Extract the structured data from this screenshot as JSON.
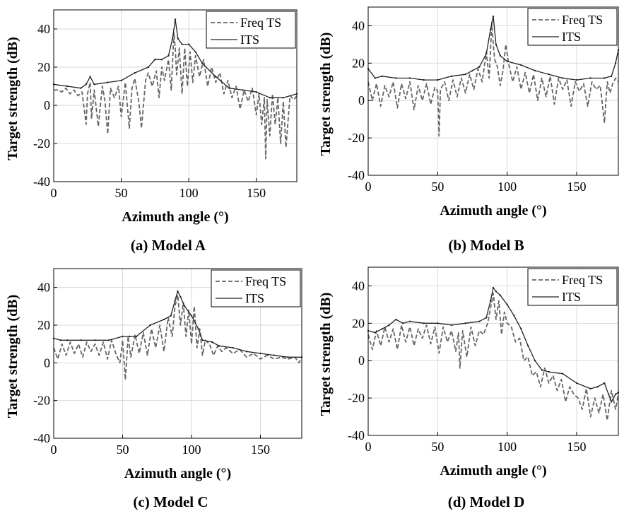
{
  "chart_data": [
    {
      "type": "line",
      "caption": "(a) Model A",
      "xlabel": "Azimuth angle (°)",
      "ylabel": "Target strength (dB)",
      "xlim": [
        0,
        180
      ],
      "ylim": [
        -40,
        50
      ],
      "xticks": [
        0,
        50,
        100,
        150
      ],
      "yticks": [
        -40,
        -20,
        0,
        20,
        40
      ],
      "grid": true,
      "legend": "top-right",
      "series": [
        {
          "name": "Freq TS",
          "style": "dashed",
          "color": "#666666",
          "x": [
            0,
            3,
            6,
            9,
            12,
            15,
            18,
            21,
            24,
            25,
            27,
            28,
            30,
            33,
            36,
            38,
            40,
            42,
            45,
            48,
            50,
            53,
            56,
            58,
            60,
            63,
            65,
            68,
            70,
            73,
            76,
            78,
            80,
            82,
            85,
            87,
            89,
            90,
            91,
            93,
            95,
            97,
            99,
            101,
            103,
            105,
            108,
            111,
            114,
            117,
            120,
            123,
            126,
            129,
            132,
            135,
            138,
            141,
            144,
            147,
            150,
            152,
            154,
            156,
            157,
            158,
            160,
            162,
            164,
            166,
            168,
            170,
            172,
            175,
            178,
            180
          ],
          "values": [
            8,
            8,
            7,
            9,
            6,
            8,
            5,
            7,
            -10,
            6,
            12,
            -7,
            8,
            -11,
            10,
            2,
            -15,
            9,
            4,
            10,
            -6,
            12,
            -12,
            9,
            14,
            2,
            -12,
            13,
            17,
            10,
            18,
            4,
            20,
            13,
            24,
            8,
            38,
            30,
            16,
            30,
            6,
            30,
            10,
            28,
            12,
            26,
            15,
            24,
            10,
            20,
            12,
            17,
            6,
            13,
            4,
            10,
            -2,
            8,
            2,
            9,
            -5,
            6,
            -10,
            4,
            -28,
            3,
            -16,
            6,
            -10,
            4,
            -20,
            2,
            -22,
            5,
            3,
            5
          ]
        },
        {
          "name": "ITS",
          "style": "solid",
          "color": "#222222",
          "x": [
            0,
            10,
            20,
            24,
            27,
            30,
            40,
            50,
            60,
            70,
            75,
            80,
            85,
            88,
            90,
            92,
            95,
            100,
            105,
            110,
            120,
            130,
            140,
            150,
            160,
            170,
            180
          ],
          "values": [
            11,
            10,
            9,
            11,
            15,
            11,
            12,
            13,
            17,
            20,
            24,
            24,
            26,
            35,
            45,
            35,
            32,
            32,
            28,
            22,
            15,
            9,
            8,
            7,
            4,
            4,
            6
          ]
        }
      ]
    },
    {
      "type": "line",
      "caption": "(b) Model B",
      "xlabel": "Azimuth angle (°)",
      "ylabel": "Target strength (dB)",
      "xlim": [
        0,
        180
      ],
      "ylim": [
        -40,
        50
      ],
      "xticks": [
        0,
        50,
        100,
        150
      ],
      "yticks": [
        -40,
        -20,
        0,
        20,
        40
      ],
      "grid": true,
      "legend": "top-right",
      "series": [
        {
          "name": "Freq TS",
          "style": "dashed",
          "color": "#666666",
          "x": [
            0,
            3,
            6,
            9,
            12,
            15,
            18,
            21,
            24,
            27,
            30,
            33,
            36,
            39,
            42,
            45,
            48,
            50,
            51,
            52,
            55,
            58,
            61,
            64,
            67,
            70,
            73,
            76,
            79,
            82,
            85,
            87,
            89,
            90,
            91,
            93,
            95,
            97,
            99,
            101,
            104,
            107,
            110,
            113,
            116,
            119,
            122,
            125,
            128,
            131,
            134,
            137,
            140,
            143,
            146,
            149,
            152,
            155,
            158,
            161,
            164,
            167,
            170,
            172,
            174,
            176,
            178,
            180
          ],
          "values": [
            10,
            0,
            9,
            -3,
            8,
            2,
            10,
            -4,
            9,
            1,
            10,
            -5,
            8,
            0,
            9,
            -2,
            7,
            5,
            -19,
            6,
            10,
            0,
            11,
            2,
            12,
            4,
            14,
            6,
            17,
            10,
            26,
            12,
            42,
            30,
            22,
            18,
            8,
            16,
            30,
            20,
            10,
            18,
            6,
            15,
            4,
            14,
            0,
            12,
            2,
            13,
            -2,
            12,
            6,
            11,
            -3,
            10,
            5,
            9,
            -3,
            10,
            6,
            8,
            -12,
            10,
            4,
            9,
            12,
            10
          ]
        },
        {
          "name": "ITS",
          "style": "solid",
          "color": "#222222",
          "x": [
            0,
            5,
            10,
            20,
            30,
            40,
            50,
            60,
            70,
            75,
            80,
            85,
            88,
            90,
            92,
            95,
            100,
            110,
            120,
            130,
            140,
            150,
            160,
            170,
            175,
            178,
            180
          ],
          "values": [
            17,
            12,
            13,
            12,
            12,
            11,
            11,
            13,
            14,
            16,
            18,
            25,
            38,
            45,
            30,
            24,
            21,
            19,
            16,
            14,
            12,
            11,
            12,
            12,
            13,
            20,
            27
          ]
        }
      ]
    },
    {
      "type": "line",
      "caption": "(c) Model C",
      "xlabel": "Azimuth angle (°)",
      "ylabel": "Target strength (dB)",
      "xlim": [
        0,
        180
      ],
      "ylim": [
        -40,
        50
      ],
      "xticks": [
        0,
        50,
        100,
        150
      ],
      "yticks": [
        -40,
        -20,
        0,
        20,
        40
      ],
      "grid": true,
      "legend": "top-right",
      "series": [
        {
          "name": "Freq TS",
          "style": "dashed",
          "color": "#666666",
          "x": [
            0,
            3,
            6,
            9,
            12,
            15,
            18,
            21,
            24,
            27,
            30,
            33,
            36,
            39,
            42,
            45,
            48,
            50,
            52,
            54,
            56,
            59,
            62,
            65,
            68,
            71,
            74,
            77,
            80,
            83,
            86,
            88,
            90,
            92,
            94,
            96,
            98,
            100,
            102,
            104,
            106,
            108,
            110,
            113,
            116,
            119,
            122,
            125,
            130,
            135,
            140,
            145,
            150,
            155,
            160,
            165,
            170,
            175,
            178,
            180
          ],
          "values": [
            8,
            2,
            10,
            4,
            11,
            5,
            10,
            3,
            11,
            6,
            10,
            4,
            11,
            2,
            12,
            5,
            0,
            12,
            -9,
            14,
            3,
            15,
            5,
            16,
            4,
            18,
            8,
            20,
            6,
            24,
            14,
            30,
            36,
            20,
            32,
            14,
            28,
            10,
            30,
            8,
            18,
            4,
            12,
            10,
            4,
            9,
            6,
            8,
            5,
            7,
            3,
            5,
            2,
            4,
            2,
            3,
            2,
            3,
            0,
            3
          ]
        },
        {
          "name": "ITS",
          "style": "solid",
          "color": "#222222",
          "x": [
            0,
            5,
            10,
            20,
            30,
            40,
            50,
            55,
            60,
            70,
            80,
            85,
            88,
            90,
            92,
            95,
            100,
            105,
            108,
            115,
            120,
            130,
            140,
            150,
            160,
            170,
            180
          ],
          "values": [
            13,
            12,
            12,
            12,
            12,
            12,
            14,
            14,
            14,
            20,
            23,
            25,
            33,
            38,
            35,
            30,
            25,
            18,
            12,
            11,
            9,
            8,
            6,
            5,
            4,
            3,
            3
          ]
        }
      ]
    },
    {
      "type": "line",
      "caption": "(d) Model D",
      "xlabel": "Azimuth angle (°)",
      "ylabel": "Target strength (dB)",
      "xlim": [
        0,
        180
      ],
      "ylim": [
        -40,
        50
      ],
      "xticks": [
        0,
        50,
        100,
        150
      ],
      "yticks": [
        -40,
        -20,
        0,
        20,
        40
      ],
      "grid": true,
      "legend": "top-right",
      "series": [
        {
          "name": "Freq TS",
          "style": "dashed",
          "color": "#666666",
          "x": [
            0,
            3,
            6,
            9,
            12,
            15,
            18,
            21,
            24,
            27,
            30,
            33,
            36,
            39,
            42,
            45,
            48,
            51,
            54,
            57,
            60,
            63,
            65,
            66,
            68,
            71,
            74,
            77,
            80,
            83,
            86,
            88,
            90,
            92,
            94,
            96,
            98,
            100,
            103,
            106,
            109,
            112,
            115,
            118,
            121,
            124,
            127,
            130,
            133,
            136,
            139,
            142,
            145,
            148,
            151,
            154,
            157,
            160,
            163,
            166,
            169,
            172,
            175,
            178,
            180
          ],
          "values": [
            14,
            6,
            16,
            8,
            18,
            10,
            17,
            6,
            19,
            10,
            18,
            8,
            17,
            12,
            19,
            9,
            18,
            4,
            18,
            10,
            16,
            5,
            15,
            -4,
            16,
            2,
            18,
            8,
            16,
            14,
            20,
            28,
            36,
            22,
            32,
            14,
            26,
            20,
            18,
            10,
            12,
            0,
            2,
            -8,
            -6,
            -14,
            -4,
            -12,
            -8,
            -16,
            -10,
            -22,
            -14,
            -18,
            -20,
            -26,
            -15,
            -30,
            -20,
            -28,
            -18,
            -32,
            -16,
            -26,
            -18
          ]
        },
        {
          "name": "ITS",
          "style": "solid",
          "color": "#222222",
          "x": [
            0,
            5,
            10,
            15,
            20,
            25,
            30,
            40,
            50,
            60,
            70,
            80,
            85,
            88,
            90,
            92,
            95,
            100,
            105,
            110,
            115,
            120,
            125,
            130,
            140,
            150,
            160,
            165,
            170,
            173,
            175,
            178,
            180
          ],
          "values": [
            16,
            15,
            17,
            19,
            22,
            20,
            21,
            20,
            20,
            19,
            20,
            21,
            23,
            32,
            39,
            37,
            35,
            30,
            24,
            17,
            8,
            0,
            -5,
            -6,
            -7,
            -12,
            -15,
            -14,
            -12,
            -18,
            -22,
            -18,
            -17
          ]
        }
      ]
    }
  ]
}
